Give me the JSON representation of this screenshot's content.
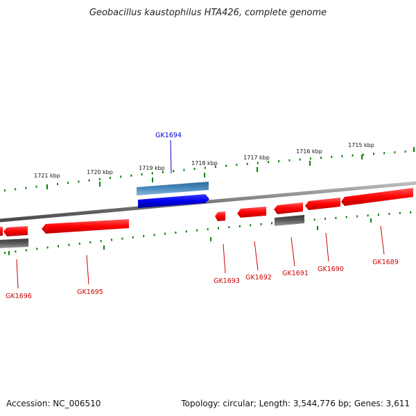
{
  "title": "Geobacillus kaustophilus HTA426, complete genome",
  "footer": {
    "accession": "Accession: NC_006510",
    "summary": "Topology: circular; Length: 3,544,776 bp; Genes: 3,611"
  },
  "colors": {
    "forward_gene": "#ff0000",
    "reverse_gene": "#ee0000",
    "highlight_gene": "#0000ee",
    "highlight_rna": "#4a8cc0",
    "pseudo_gene": "#555555",
    "backbone": "#7a7a7a",
    "tick": "#008000",
    "gene_label": "#cc0000",
    "highlight_label": "#0000cc"
  },
  "ticks": [
    {
      "kbp": 1721,
      "label": "1721 kbp"
    },
    {
      "kbp": 1720,
      "label": "1720 kbp"
    },
    {
      "kbp": 1719,
      "label": "1719 kbp"
    },
    {
      "kbp": 1718,
      "label": "1718 kbp"
    },
    {
      "kbp": 1717,
      "label": "1717 kbp"
    },
    {
      "kbp": 1716,
      "label": "1716 kbp"
    },
    {
      "kbp": 1715,
      "label": "1715 kbp"
    }
  ],
  "genes": [
    {
      "label": "GK1694",
      "highlight": true
    },
    {
      "label": "GK1689",
      "highlight": false
    },
    {
      "label": "GK1690",
      "highlight": false
    },
    {
      "label": "GK1691",
      "highlight": false
    },
    {
      "label": "GK1692",
      "highlight": false
    },
    {
      "label": "GK1693",
      "highlight": false
    },
    {
      "label": "GK1695",
      "highlight": false
    },
    {
      "label": "GK1696",
      "highlight": false
    }
  ]
}
